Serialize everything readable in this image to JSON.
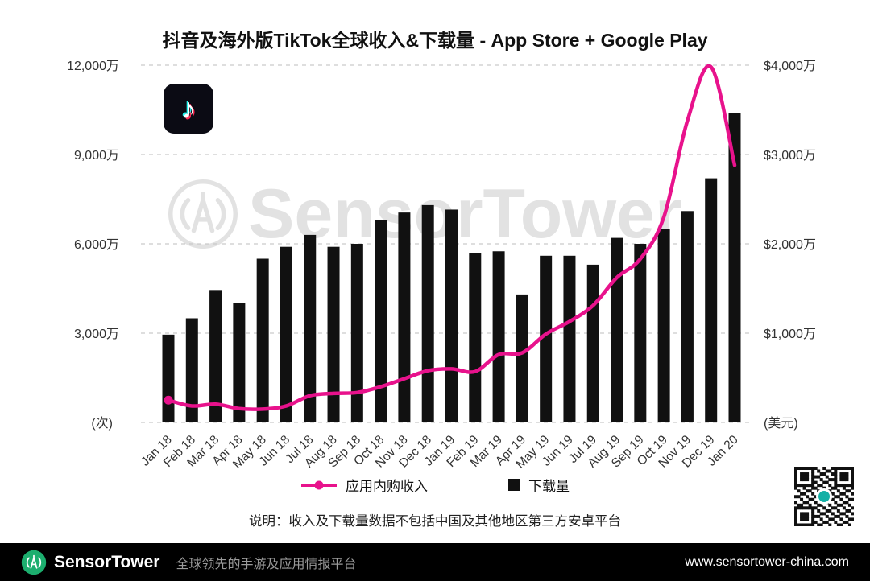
{
  "chart": {
    "title": "抖音及海外版TikTok全球收入&下载量 - App Store + Google Play",
    "note": "说明：收入及下载量数据不包括中国及其他地区第三方安卓平台",
    "watermark": "SensorTower"
  },
  "chart_data": {
    "type": "bar+line",
    "title": "抖音及海外版TikTok全球收入&下载量 - App Store + Google Play",
    "categories": [
      "Jan 18",
      "Feb 18",
      "Mar 18",
      "Apr 18",
      "May 18",
      "Jun 18",
      "Jul 18",
      "Aug 18",
      "Sep 18",
      "Oct 18",
      "Nov 18",
      "Dec 18",
      "Jan 19",
      "Feb 19",
      "Mar 19",
      "Apr 19",
      "May 19",
      "Jun 19",
      "Jul 19",
      "Aug 19",
      "Sep 19",
      "Oct 19",
      "Nov 19",
      "Dec 19",
      "Jan 20"
    ],
    "series": [
      {
        "name": "下载量",
        "type": "bar",
        "axis": "left",
        "unit": "万次",
        "values": [
          2950,
          3500,
          4450,
          4000,
          5500,
          5900,
          6300,
          5900,
          6000,
          6800,
          7050,
          7300,
          7150,
          5700,
          5750,
          4300,
          5600,
          5600,
          5300,
          6200,
          6000,
          6500,
          7100,
          8200,
          10400
        ]
      },
      {
        "name": "应用内购收入",
        "type": "line",
        "axis": "right",
        "unit": "万美元",
        "values": [
          250,
          185,
          205,
          155,
          150,
          185,
          300,
          325,
          335,
          400,
          490,
          580,
          600,
          570,
          760,
          780,
          990,
          1130,
          1310,
          1620,
          1830,
          2300,
          3380,
          3980,
          2880
        ]
      }
    ],
    "left_axis": {
      "ticks": [
        "12,000万",
        "9,000万",
        "6,000万",
        "3,000万"
      ],
      "tick_values": [
        12000,
        9000,
        6000,
        3000
      ],
      "max": 12000,
      "min": 0,
      "unit_label": "(次)"
    },
    "right_axis": {
      "ticks": [
        "$4,000万",
        "$3,000万",
        "$2,000万",
        "$1,000万"
      ],
      "tick_values": [
        4000,
        3000,
        2000,
        1000
      ],
      "max": 4000,
      "min": 0,
      "unit_label": "(美元)"
    },
    "legend": [
      {
        "label": "应用内购收入",
        "marker": "line-dot",
        "color": "#e8128c"
      },
      {
        "label": "下载量",
        "marker": "square",
        "color": "#111111"
      }
    ],
    "colors": {
      "bar": "#111111",
      "line": "#e8128c",
      "grid": "#c9c9c9"
    },
    "grid": "horizontal-dashed",
    "legend_position": "bottom"
  },
  "branding": {
    "tiktok_logo_colors": {
      "background": "#0b0b14",
      "cyan": "#25f4ee",
      "pink": "#fe2c55",
      "white": "#ffffff"
    },
    "qr_center_color": "#14b0a6"
  },
  "footer": {
    "brand": "SensorTower",
    "tagline": "全球领先的手游及应用情报平台",
    "url": "www.sensortower-china.com",
    "brand_color": "#1cae6e",
    "background": "#000000"
  }
}
